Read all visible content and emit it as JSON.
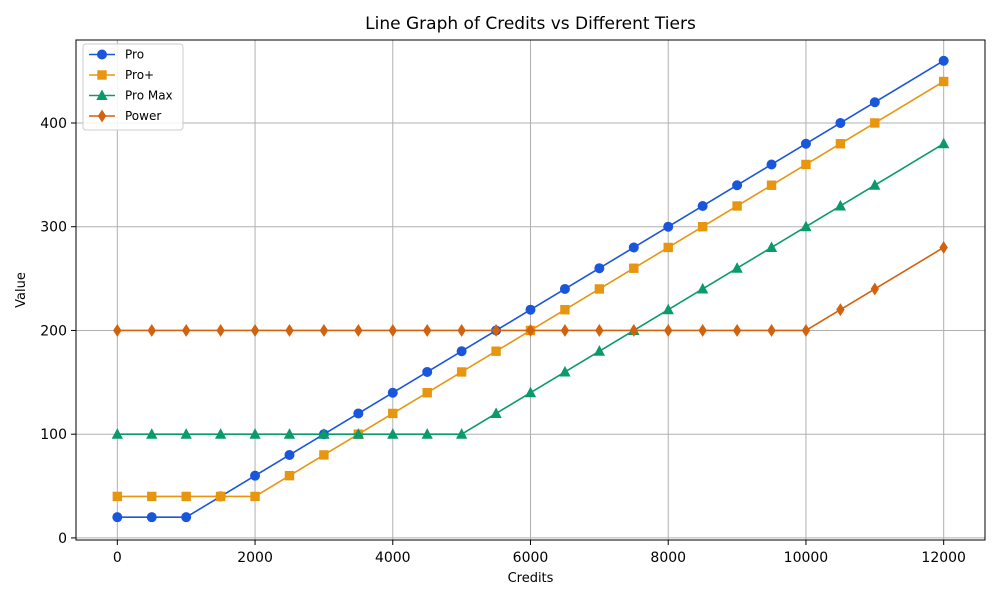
{
  "chart_data": {
    "type": "line",
    "title": "Line Graph of Credits vs Different Tiers",
    "xlabel": "Credits",
    "ylabel": "Value",
    "xlim": [
      -600,
      12600
    ],
    "ylim": [
      -2,
      480
    ],
    "xticks": [
      0,
      2000,
      4000,
      6000,
      8000,
      10000,
      12000
    ],
    "yticks": [
      0,
      100,
      200,
      300,
      400
    ],
    "grid": true,
    "legend_position": "top-left",
    "x": [
      0,
      500,
      1000,
      1500,
      2000,
      2500,
      3000,
      3500,
      4000,
      4500,
      5000,
      5500,
      6000,
      6500,
      7000,
      7500,
      8000,
      8500,
      9000,
      9500,
      10000,
      10500,
      11000,
      12000
    ],
    "series": [
      {
        "name": "Pro",
        "color": "#1a56db",
        "marker": "circle",
        "values": [
          20,
          20,
          20,
          40,
          60,
          80,
          100,
          120,
          140,
          160,
          180,
          200,
          220,
          240,
          260,
          280,
          300,
          320,
          340,
          360,
          380,
          400,
          420,
          460
        ]
      },
      {
        "name": "Pro+",
        "color": "#e8950f",
        "marker": "square",
        "values": [
          40,
          40,
          40,
          40,
          40,
          60,
          80,
          100,
          120,
          140,
          160,
          180,
          200,
          220,
          240,
          260,
          280,
          300,
          320,
          340,
          360,
          380,
          400,
          440
        ]
      },
      {
        "name": "Pro Max",
        "color": "#0b9a6b",
        "marker": "triangle",
        "values": [
          100,
          100,
          100,
          100,
          100,
          100,
          100,
          100,
          100,
          100,
          100,
          120,
          140,
          160,
          180,
          200,
          220,
          240,
          260,
          280,
          300,
          320,
          340,
          380
        ]
      },
      {
        "name": "Power",
        "color": "#d2620d",
        "marker": "diamond",
        "values": [
          200,
          200,
          200,
          200,
          200,
          200,
          200,
          200,
          200,
          200,
          200,
          200,
          200,
          200,
          200,
          200,
          200,
          200,
          200,
          200,
          200,
          220,
          240,
          280
        ]
      }
    ]
  }
}
